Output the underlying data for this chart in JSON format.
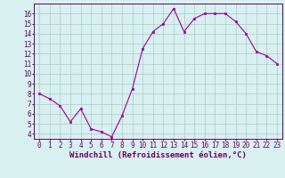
{
  "x": [
    0,
    1,
    2,
    3,
    4,
    5,
    6,
    7,
    8,
    9,
    10,
    11,
    12,
    13,
    14,
    15,
    16,
    17,
    18,
    19,
    20,
    21,
    22,
    23
  ],
  "y": [
    8.0,
    7.5,
    6.8,
    5.2,
    6.5,
    4.5,
    4.2,
    3.7,
    5.8,
    8.5,
    12.5,
    14.2,
    15.0,
    16.5,
    14.2,
    15.5,
    16.0,
    16.0,
    16.0,
    15.2,
    14.0,
    12.2,
    11.8,
    11.0
  ],
  "line_color": "#990099",
  "marker": "s",
  "markersize": 2,
  "background_color": "#d8f0f0",
  "grid_color": "#aacccc",
  "xlabel": "Windchill (Refroidissement éolien,°C)",
  "xlabel_color": "#660066",
  "tick_color": "#660066",
  "ylim": [
    3.5,
    17.0
  ],
  "xlim": [
    -0.5,
    23.5
  ],
  "yticks": [
    4,
    5,
    6,
    7,
    8,
    9,
    10,
    11,
    12,
    13,
    14,
    15,
    16
  ],
  "xticks": [
    0,
    1,
    2,
    3,
    4,
    5,
    6,
    7,
    8,
    9,
    10,
    11,
    12,
    13,
    14,
    15,
    16,
    17,
    18,
    19,
    20,
    21,
    22,
    23
  ],
  "label_fontsize": 6.5,
  "tick_fontsize": 5.5
}
